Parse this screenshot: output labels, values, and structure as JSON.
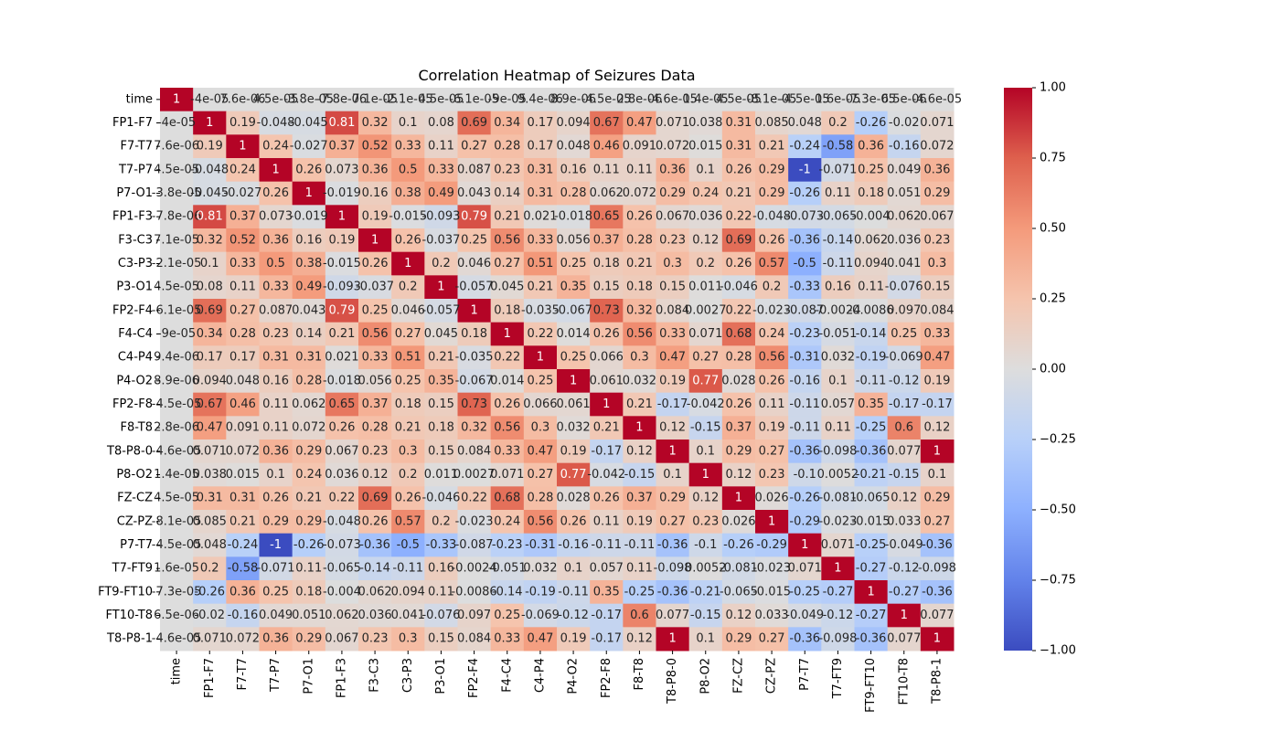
{
  "chart_data": {
    "type": "heatmap",
    "title": "Correlation Heatmap of Seizures Data",
    "labels": [
      "time",
      "FP1-F7",
      "F7-T7",
      "T7-P7",
      "P7-O1",
      "FP1-F3",
      "F3-C3",
      "C3-P3",
      "P3-O1",
      "FP2-F4",
      "F4-C4",
      "C4-P4",
      "P4-O2",
      "FP2-F8",
      "F8-T8",
      "T8-P8-0",
      "P8-O2",
      "FZ-CZ",
      "CZ-PZ",
      "P7-T7",
      "T7-FT9",
      "FT9-FT10",
      "FT10-T8",
      "T8-P8-1"
    ],
    "colormap": "coolwarm",
    "vmin": -1.0,
    "vmax": 1.0,
    "colorbar_ticks": [
      "1.00",
      "0.75",
      "0.50",
      "0.25",
      "0.00",
      "−0.25",
      "−0.50",
      "−0.75",
      "−1.00"
    ],
    "colorbar_tick_values": [
      1.0,
      0.75,
      0.5,
      0.25,
      0.0,
      -0.25,
      -0.5,
      -0.75,
      -1.0
    ],
    "values": [
      [
        1,
        -4e-05,
        7.6e-06,
        4.5e-05,
        -3.8e-05,
        -7.8e-06,
        7.1e-05,
        -2.1e-05,
        4.5e-05,
        -6.1e-05,
        -9e-05,
        9.4e-06,
        8.9e-06,
        -4.5e-05,
        2.8e-06,
        -4.6e-05,
        1.4e-05,
        4.5e-05,
        -8.1e-05,
        -4.5e-05,
        1.6e-05,
        -7.3e-05,
        6.5e-06,
        -4.6e-05
      ],
      [
        -4e-05,
        1,
        0.19,
        -0.048,
        -0.045,
        0.81,
        0.32,
        0.1,
        0.08,
        0.69,
        0.34,
        0.17,
        0.094,
        0.67,
        0.47,
        0.071,
        0.038,
        0.31,
        0.085,
        0.048,
        0.2,
        -0.26,
        -0.02,
        0.071
      ],
      [
        7.6e-06,
        0.19,
        1,
        0.24,
        -0.027,
        0.37,
        0.52,
        0.33,
        0.11,
        0.27,
        0.28,
        0.17,
        0.048,
        0.46,
        0.091,
        0.072,
        0.015,
        0.31,
        0.21,
        -0.24,
        -0.58,
        0.36,
        -0.16,
        0.072
      ],
      [
        4.5e-05,
        -0.048,
        0.24,
        1,
        0.26,
        0.073,
        0.36,
        0.5,
        0.33,
        0.087,
        0.23,
        0.31,
        0.16,
        0.11,
        0.11,
        0.36,
        0.1,
        0.26,
        0.29,
        -1,
        -0.071,
        0.25,
        0.049,
        0.36
      ],
      [
        -3.8e-05,
        -0.045,
        -0.027,
        0.26,
        1,
        -0.019,
        0.16,
        0.38,
        0.49,
        0.043,
        0.14,
        0.31,
        0.28,
        0.062,
        0.072,
        0.29,
        0.24,
        0.21,
        0.29,
        -0.26,
        0.11,
        0.18,
        0.051,
        0.29
      ],
      [
        -7.8e-06,
        0.81,
        0.37,
        0.073,
        -0.019,
        1,
        0.19,
        -0.015,
        -0.093,
        0.79,
        0.21,
        0.021,
        -0.018,
        0.65,
        0.26,
        0.067,
        0.036,
        0.22,
        -0.048,
        -0.073,
        -0.065,
        -0.004,
        0.062,
        0.067
      ],
      [
        7.1e-05,
        0.32,
        0.52,
        0.36,
        0.16,
        0.19,
        1,
        0.26,
        -0.037,
        0.25,
        0.56,
        0.33,
        0.056,
        0.37,
        0.28,
        0.23,
        0.12,
        0.69,
        0.26,
        -0.36,
        -0.14,
        0.062,
        0.036,
        0.23
      ],
      [
        -2.1e-05,
        0.1,
        0.33,
        0.5,
        0.38,
        -0.015,
        0.26,
        1,
        0.2,
        0.046,
        0.27,
        0.51,
        0.25,
        0.18,
        0.21,
        0.3,
        0.2,
        0.26,
        0.57,
        -0.5,
        -0.11,
        0.094,
        0.041,
        0.3
      ],
      [
        4.5e-05,
        0.08,
        0.11,
        0.33,
        0.49,
        -0.093,
        -0.037,
        0.2,
        1,
        -0.057,
        0.045,
        0.21,
        0.35,
        0.15,
        0.18,
        0.15,
        0.011,
        -0.046,
        0.2,
        -0.33,
        0.16,
        0.11,
        -0.076,
        0.15
      ],
      [
        -6.1e-05,
        0.69,
        0.27,
        0.087,
        0.043,
        0.79,
        0.25,
        0.046,
        -0.057,
        1,
        0.18,
        -0.035,
        -0.067,
        0.73,
        0.32,
        0.084,
        0.0027,
        0.22,
        -0.023,
        -0.087,
        -0.0024,
        -0.0086,
        0.097,
        0.084
      ],
      [
        -9e-05,
        0.34,
        0.28,
        0.23,
        0.14,
        0.21,
        0.56,
        0.27,
        0.045,
        0.18,
        1,
        0.22,
        0.014,
        0.26,
        0.56,
        0.33,
        0.071,
        0.68,
        0.24,
        -0.23,
        -0.051,
        -0.14,
        0.25,
        0.33
      ],
      [
        9.4e-06,
        0.17,
        0.17,
        0.31,
        0.31,
        0.021,
        0.33,
        0.51,
        0.21,
        -0.035,
        0.22,
        1,
        0.25,
        0.066,
        0.3,
        0.47,
        0.27,
        0.28,
        0.56,
        -0.31,
        0.032,
        -0.19,
        -0.069,
        0.47
      ],
      [
        8.9e-06,
        0.094,
        0.048,
        0.16,
        0.28,
        -0.018,
        0.056,
        0.25,
        0.35,
        -0.067,
        0.014,
        0.25,
        1,
        0.061,
        0.032,
        0.19,
        0.77,
        0.028,
        0.26,
        -0.16,
        0.1,
        -0.11,
        -0.12,
        0.19
      ],
      [
        -4.5e-05,
        0.67,
        0.46,
        0.11,
        0.062,
        0.65,
        0.37,
        0.18,
        0.15,
        0.73,
        0.26,
        0.066,
        0.061,
        1,
        0.21,
        -0.17,
        -0.042,
        0.26,
        0.11,
        -0.11,
        0.057,
        0.35,
        -0.17,
        -0.17
      ],
      [
        2.8e-06,
        0.47,
        0.091,
        0.11,
        0.072,
        0.26,
        0.28,
        0.21,
        0.18,
        0.32,
        0.56,
        0.3,
        0.032,
        0.21,
        1,
        0.12,
        -0.15,
        0.37,
        0.19,
        -0.11,
        0.11,
        -0.25,
        0.6,
        0.12
      ],
      [
        -4.6e-05,
        0.071,
        0.072,
        0.36,
        0.29,
        0.067,
        0.23,
        0.3,
        0.15,
        0.084,
        0.33,
        0.47,
        0.19,
        -0.17,
        0.12,
        1,
        0.1,
        0.29,
        0.27,
        -0.36,
        -0.098,
        -0.36,
        0.077,
        1
      ],
      [
        1.4e-05,
        0.038,
        0.015,
        0.1,
        0.24,
        0.036,
        0.12,
        0.2,
        0.011,
        0.0027,
        0.071,
        0.27,
        0.77,
        -0.042,
        -0.15,
        0.1,
        1,
        0.12,
        0.23,
        -0.1,
        0.0052,
        -0.21,
        -0.15,
        0.1
      ],
      [
        4.5e-05,
        0.31,
        0.31,
        0.26,
        0.21,
        0.22,
        0.69,
        0.26,
        -0.046,
        0.22,
        0.68,
        0.28,
        0.028,
        0.26,
        0.37,
        0.29,
        0.12,
        1,
        0.026,
        -0.26,
        -0.081,
        -0.065,
        0.12,
        0.29
      ],
      [
        -8.1e-05,
        0.085,
        0.21,
        0.29,
        0.29,
        -0.048,
        0.26,
        0.57,
        0.2,
        -0.023,
        0.24,
        0.56,
        0.26,
        0.11,
        0.19,
        0.27,
        0.23,
        0.026,
        1,
        -0.29,
        -0.023,
        -0.015,
        0.033,
        0.27
      ],
      [
        -4.5e-05,
        0.048,
        -0.24,
        -1,
        -0.26,
        -0.073,
        -0.36,
        -0.5,
        -0.33,
        -0.087,
        -0.23,
        -0.31,
        -0.16,
        -0.11,
        -0.11,
        -0.36,
        -0.1,
        -0.26,
        -0.29,
        1,
        0.071,
        -0.25,
        -0.049,
        -0.36
      ],
      [
        1.6e-05,
        0.2,
        -0.58,
        -0.071,
        0.11,
        -0.065,
        -0.14,
        -0.11,
        0.16,
        -0.0024,
        -0.051,
        0.032,
        0.1,
        0.057,
        0.11,
        -0.098,
        0.0052,
        -0.081,
        -0.023,
        0.071,
        1,
        -0.27,
        -0.12,
        -0.098
      ],
      [
        -7.3e-05,
        -0.26,
        0.36,
        0.25,
        0.18,
        -0.004,
        0.062,
        0.094,
        0.11,
        -0.0086,
        -0.14,
        -0.19,
        -0.11,
        0.35,
        -0.25,
        -0.36,
        -0.21,
        -0.065,
        -0.015,
        -0.25,
        -0.27,
        1,
        -0.27,
        -0.36
      ],
      [
        6.5e-06,
        -0.02,
        -0.16,
        0.049,
        0.051,
        0.062,
        0.036,
        0.041,
        -0.076,
        0.097,
        0.25,
        -0.069,
        -0.12,
        -0.17,
        0.6,
        0.077,
        -0.15,
        0.12,
        0.033,
        -0.049,
        -0.12,
        -0.27,
        1,
        0.077
      ],
      [
        -4.6e-05,
        0.071,
        0.072,
        0.36,
        0.29,
        0.067,
        0.23,
        0.3,
        0.15,
        0.084,
        0.33,
        0.47,
        0.19,
        -0.17,
        0.12,
        1,
        0.1,
        0.29,
        0.27,
        -0.36,
        -0.098,
        -0.36,
        0.077,
        1
      ]
    ],
    "annotations": [
      [
        "1",
        "-4e-05",
        "7.6e-06",
        "4.5e-05",
        "-3.8e-05",
        "-7.8e-06",
        "7.1e-05",
        "-2.1e-05",
        "4.5e-05",
        "-6.1e-05",
        "-9e-05",
        "9.4e-06",
        "8.9e-06",
        "-4.5e-05",
        "2.8e-06",
        "-4.6e-05",
        "1.4e-05",
        "4.5e-05",
        "-8.1e-05",
        "-4.5e-05",
        "1.6e-05",
        "-7.3e-05",
        "6.5e-06",
        "-4.6e-05"
      ],
      [
        "-4e-05",
        "1",
        "0.19",
        "-0.048",
        "-0.045",
        "0.81",
        "0.32",
        "0.1",
        "0.08",
        "0.69",
        "0.34",
        "0.17",
        "0.094",
        "0.67",
        "0.47",
        "0.071",
        "0.038",
        "0.31",
        "0.085",
        "0.048",
        "0.2",
        "-0.26",
        "-0.02",
        "0.071"
      ],
      [
        "7.6e-06",
        "0.19",
        "1",
        "0.24",
        "-0.027",
        "0.37",
        "0.52",
        "0.33",
        "0.11",
        "0.27",
        "0.28",
        "0.17",
        "0.048",
        "0.46",
        "0.091",
        "0.072",
        "0.015",
        "0.31",
        "0.21",
        "-0.24",
        "-0.58",
        "0.36",
        "-0.16",
        "0.072"
      ],
      [
        "4.5e-05",
        "-0.048",
        "0.24",
        "1",
        "0.26",
        "0.073",
        "0.36",
        "0.5",
        "0.33",
        "0.087",
        "0.23",
        "0.31",
        "0.16",
        "0.11",
        "0.11",
        "0.36",
        "0.1",
        "0.26",
        "0.29",
        "-1",
        "-0.071",
        "0.25",
        "0.049",
        "0.36"
      ],
      [
        "-3.8e-05",
        "-0.045",
        "-0.027",
        "0.26",
        "1",
        "-0.019",
        "0.16",
        "0.38",
        "0.49",
        "0.043",
        "0.14",
        "0.31",
        "0.28",
        "0.062",
        "0.072",
        "0.29",
        "0.24",
        "0.21",
        "0.29",
        "-0.26",
        "0.11",
        "0.18",
        "0.051",
        "0.29"
      ],
      [
        "-7.8e-06",
        "0.81",
        "0.37",
        "0.073",
        "-0.019",
        "1",
        "0.19",
        "-0.015",
        "-0.093",
        "0.79",
        "0.21",
        "0.021",
        "-0.018",
        "0.65",
        "0.26",
        "0.067",
        "0.036",
        "0.22",
        "-0.048",
        "-0.073",
        "-0.065",
        "-0.004",
        "0.062",
        "0.067"
      ],
      [
        "7.1e-05",
        "0.32",
        "0.52",
        "0.36",
        "0.16",
        "0.19",
        "1",
        "0.26",
        "-0.037",
        "0.25",
        "0.56",
        "0.33",
        "0.056",
        "0.37",
        "0.28",
        "0.23",
        "0.12",
        "0.69",
        "0.26",
        "-0.36",
        "-0.14",
        "0.062",
        "0.036",
        "0.23"
      ],
      [
        "-2.1e-05",
        "0.1",
        "0.33",
        "0.5",
        "0.38",
        "-0.015",
        "0.26",
        "1",
        "0.2",
        "0.046",
        "0.27",
        "0.51",
        "0.25",
        "0.18",
        "0.21",
        "0.3",
        "0.2",
        "0.26",
        "0.57",
        "-0.5",
        "-0.11",
        "0.094",
        "0.041",
        "0.3"
      ],
      [
        "4.5e-05",
        "0.08",
        "0.11",
        "0.33",
        "0.49",
        "-0.093",
        "-0.037",
        "0.2",
        "1",
        "-0.057",
        "0.045",
        "0.21",
        "0.35",
        "0.15",
        "0.18",
        "0.15",
        "0.011",
        "-0.046",
        "0.2",
        "-0.33",
        "0.16",
        "0.11",
        "-0.076",
        "0.15"
      ],
      [
        "-6.1e-05",
        "0.69",
        "0.27",
        "0.087",
        "0.043",
        "0.79",
        "0.25",
        "0.046",
        "-0.057",
        "1",
        "0.18",
        "-0.035",
        "-0.067",
        "0.73",
        "0.32",
        "0.084",
        "0.0027",
        "0.22",
        "-0.023",
        "-0.087",
        "-0.0024",
        "-0.0086",
        "0.097",
        "0.084"
      ],
      [
        "-9e-05",
        "0.34",
        "0.28",
        "0.23",
        "0.14",
        "0.21",
        "0.56",
        "0.27",
        "0.045",
        "0.18",
        "1",
        "0.22",
        "0.014",
        "0.26",
        "0.56",
        "0.33",
        "0.071",
        "0.68",
        "0.24",
        "-0.23",
        "-0.051",
        "-0.14",
        "0.25",
        "0.33"
      ],
      [
        "9.4e-06",
        "0.17",
        "0.17",
        "0.31",
        "0.31",
        "0.021",
        "0.33",
        "0.51",
        "0.21",
        "-0.035",
        "0.22",
        "1",
        "0.25",
        "0.066",
        "0.3",
        "0.47",
        "0.27",
        "0.28",
        "0.56",
        "-0.31",
        "0.032",
        "-0.19",
        "-0.069",
        "0.47"
      ],
      [
        "8.9e-06",
        "0.094",
        "0.048",
        "0.16",
        "0.28",
        "-0.018",
        "0.056",
        "0.25",
        "0.35",
        "-0.067",
        "0.014",
        "0.25",
        "1",
        "0.061",
        "0.032",
        "0.19",
        "0.77",
        "0.028",
        "0.26",
        "-0.16",
        "0.1",
        "-0.11",
        "-0.12",
        "0.19"
      ],
      [
        "-4.5e-05",
        "0.67",
        "0.46",
        "0.11",
        "0.062",
        "0.65",
        "0.37",
        "0.18",
        "0.15",
        "0.73",
        "0.26",
        "0.066",
        "0.061",
        "1",
        "0.21",
        "-0.17",
        "-0.042",
        "0.26",
        "0.11",
        "-0.11",
        "0.057",
        "0.35",
        "-0.17",
        "-0.17"
      ],
      [
        "2.8e-06",
        "0.47",
        "0.091",
        "0.11",
        "0.072",
        "0.26",
        "0.28",
        "0.21",
        "0.18",
        "0.32",
        "0.56",
        "0.3",
        "0.032",
        "0.21",
        "1",
        "0.12",
        "-0.15",
        "0.37",
        "0.19",
        "-0.11",
        "0.11",
        "-0.25",
        "0.6",
        "0.12"
      ],
      [
        "-4.6e-05",
        "0.071",
        "0.072",
        "0.36",
        "0.29",
        "0.067",
        "0.23",
        "0.3",
        "0.15",
        "0.084",
        "0.33",
        "0.47",
        "0.19",
        "-0.17",
        "0.12",
        "1",
        "0.1",
        "0.29",
        "0.27",
        "-0.36",
        "-0.098",
        "-0.36",
        "0.077",
        "1"
      ],
      [
        "1.4e-05",
        "0.038",
        "0.015",
        "0.1",
        "0.24",
        "0.036",
        "0.12",
        "0.2",
        "0.011",
        "0.0027",
        "0.071",
        "0.27",
        "0.77",
        "-0.042",
        "-0.15",
        "0.1",
        "1",
        "0.12",
        "0.23",
        "-0.1",
        "0.0052",
        "-0.21",
        "-0.15",
        "0.1"
      ],
      [
        "4.5e-05",
        "0.31",
        "0.31",
        "0.26",
        "0.21",
        "0.22",
        "0.69",
        "0.26",
        "-0.046",
        "0.22",
        "0.68",
        "0.28",
        "0.028",
        "0.26",
        "0.37",
        "0.29",
        "0.12",
        "1",
        "0.026",
        "-0.26",
        "-0.081",
        "-0.065",
        "0.12",
        "0.29"
      ],
      [
        "-8.1e-05",
        "0.085",
        "0.21",
        "0.29",
        "0.29",
        "-0.048",
        "0.26",
        "0.57",
        "0.2",
        "-0.023",
        "0.24",
        "0.56",
        "0.26",
        "0.11",
        "0.19",
        "0.27",
        "0.23",
        "0.026",
        "1",
        "-0.29",
        "-0.023",
        "-0.015",
        "0.033",
        "0.27"
      ],
      [
        "-4.5e-05",
        "0.048",
        "-0.24",
        "-1",
        "-0.26",
        "-0.073",
        "-0.36",
        "-0.5",
        "-0.33",
        "-0.087",
        "-0.23",
        "-0.31",
        "-0.16",
        "-0.11",
        "-0.11",
        "-0.36",
        "-0.1",
        "-0.26",
        "-0.29",
        "1",
        "0.071",
        "-0.25",
        "-0.049",
        "-0.36"
      ],
      [
        "1.6e-05",
        "0.2",
        "-0.58",
        "-0.071",
        "0.11",
        "-0.065",
        "-0.14",
        "-0.11",
        "0.16",
        "-0.0024",
        "-0.051",
        "0.032",
        "0.1",
        "0.057",
        "0.11",
        "-0.098",
        "0.0052",
        "-0.081",
        "-0.023",
        "0.071",
        "1",
        "-0.27",
        "-0.12",
        "-0.098"
      ],
      [
        "-7.3e-05",
        "-0.26",
        "0.36",
        "0.25",
        "0.18",
        "-0.004",
        "0.062",
        "0.094",
        "0.11",
        "-0.0086",
        "-0.14",
        "-0.19",
        "-0.11",
        "0.35",
        "-0.25",
        "-0.36",
        "-0.21",
        "-0.065",
        "-0.015",
        "-0.25",
        "-0.27",
        "1",
        "-0.27",
        "-0.36"
      ],
      [
        "6.5e-06",
        "-0.02",
        "-0.16",
        "0.049",
        "0.051",
        "0.062",
        "0.036",
        "0.041",
        "-0.076",
        "0.097",
        "0.25",
        "-0.069",
        "-0.12",
        "-0.17",
        "0.6",
        "0.077",
        "-0.15",
        "0.12",
        "0.033",
        "-0.049",
        "-0.12",
        "-0.27",
        "1",
        "0.077"
      ],
      [
        "-4.6e-05",
        "0.071",
        "0.072",
        "0.36",
        "0.29",
        "0.067",
        "0.23",
        "0.3",
        "0.15",
        "0.084",
        "0.33",
        "0.47",
        "0.19",
        "-0.17",
        "0.12",
        "1",
        "0.1",
        "0.29",
        "0.27",
        "-0.36",
        "-0.098",
        "-0.36",
        "0.077",
        "1"
      ]
    ]
  }
}
